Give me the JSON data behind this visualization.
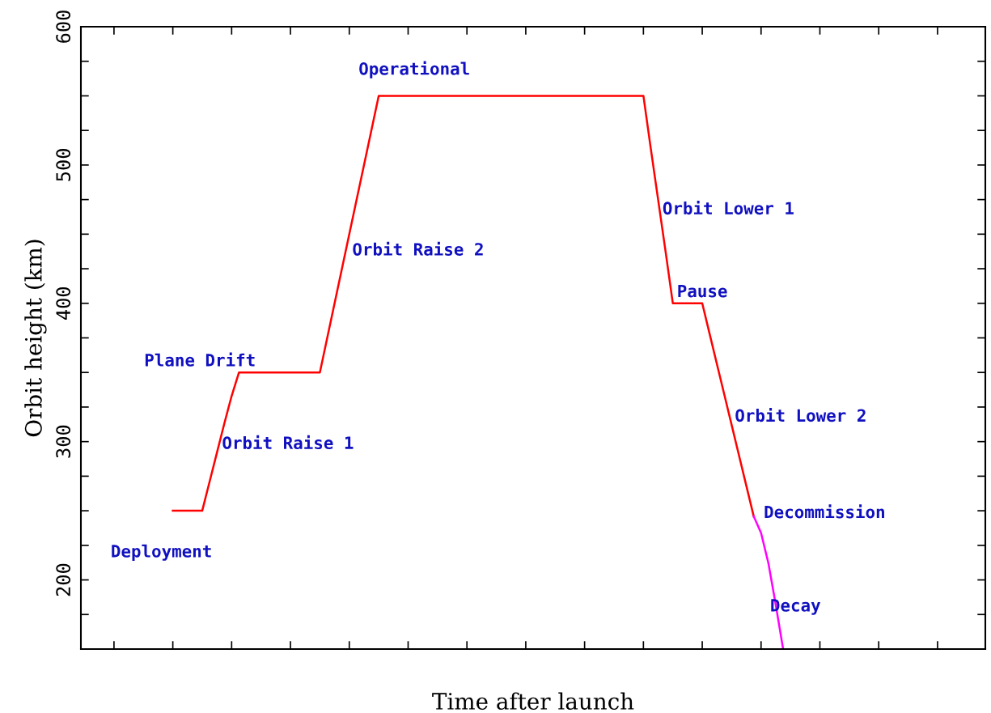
{
  "chart_data": {
    "type": "line",
    "xlabel": "Time after launch",
    "ylabel": "Orbit height (km)",
    "categories": [
      null,
      null,
      null,
      null,
      null,
      null,
      null,
      null,
      null,
      null,
      null,
      null,
      null,
      null,
      null,
      null,
      null,
      null,
      null,
      null,
      null,
      null,
      null,
      null,
      null,
      null,
      null,
      null,
      null,
      null,
      null,
      null,
      null,
      null,
      null,
      null,
      null,
      null,
      null,
      null,
      null,
      null,
      null,
      null,
      null,
      null,
      null,
      null,
      null,
      null,
      null,
      null,
      null,
      null,
      null,
      null,
      null,
      null,
      null,
      null,
      null,
      null,
      null,
      null,
      null,
      null,
      null,
      null,
      null,
      null,
      null,
      null,
      null,
      null,
      null,
      null,
      null,
      null,
      null,
      null,
      null,
      null,
      null,
      null,
      null,
      null,
      null,
      null,
      null,
      null,
      null,
      null,
      null,
      null,
      null,
      null,
      null,
      null,
      null,
      null,
      null,
      null,
      null,
      null,
      null,
      null,
      null,
      null,
      null,
      null,
      null,
      null,
      null,
      null,
      null,
      null,
      null,
      null,
      null,
      null,
      null,
      null,
      null
    ],
    "ylim": [
      150,
      600
    ],
    "yticks": [
      {
        "value": 175,
        "label": null
      },
      200,
      {
        "value": 225,
        "label": null
      },
      {
        "value": 250,
        "label": null
      },
      {
        "value": 275,
        "label": null
      },
      300,
      {
        "value": 325,
        "label": null
      },
      {
        "value": 350,
        "label": null
      },
      {
        "value": 375,
        "label": null
      },
      400,
      {
        "value": 425,
        "label": null
      },
      {
        "value": 450,
        "label": null
      },
      {
        "value": 475,
        "label": null
      },
      500,
      {
        "value": 525,
        "label": null
      },
      {
        "value": 550,
        "label": null
      },
      {
        "value": 575,
        "label": null
      },
      600
    ],
    "tick_labels": "y",
    "grid": false,
    "marker": "none",
    "line_style": "solid",
    "series": [
      {
        "color": "#ff0000",
        "values": [
          null,
          null,
          null,
          null,
          null,
          null,
          null,
          null,
          null,
          null,
          null,
          null,
          250,
          250,
          250,
          250,
          250,
          271,
          292,
          313,
          333,
          350,
          350,
          350,
          350,
          350,
          350,
          350,
          350,
          350,
          350,
          350,
          350,
          375,
          400,
          425,
          450,
          475,
          500,
          525,
          550,
          550,
          550,
          550,
          550,
          550,
          550,
          550,
          550,
          550,
          550,
          550,
          550,
          550,
          550,
          550,
          550,
          550,
          550,
          550,
          550,
          550,
          550,
          550,
          550,
          550,
          550,
          550,
          550,
          550,
          550,
          550,
          550,
          550,
          550,
          550,
          550,
          512,
          475,
          438,
          400,
          400,
          400,
          400,
          400,
          378,
          356,
          334,
          312,
          290,
          268,
          246,
          null,
          null,
          null,
          null,
          null,
          null,
          null,
          null,
          null,
          null,
          null,
          null,
          null,
          null,
          null,
          null,
          null,
          null,
          null,
          null,
          null,
          null,
          null,
          null,
          null,
          null,
          null,
          null,
          null,
          null,
          null
        ]
      },
      {
        "color": "#ff00ff",
        "values": [
          null,
          null,
          null,
          null,
          null,
          null,
          null,
          null,
          null,
          null,
          null,
          null,
          null,
          null,
          null,
          null,
          null,
          null,
          null,
          null,
          null,
          null,
          null,
          null,
          null,
          null,
          null,
          null,
          null,
          null,
          null,
          null,
          null,
          null,
          null,
          null,
          null,
          null,
          null,
          null,
          null,
          null,
          null,
          null,
          null,
          null,
          null,
          null,
          null,
          null,
          null,
          null,
          null,
          null,
          null,
          null,
          null,
          null,
          null,
          null,
          null,
          null,
          null,
          null,
          null,
          null,
          null,
          null,
          null,
          null,
          null,
          null,
          null,
          null,
          null,
          null,
          null,
          null,
          null,
          null,
          null,
          null,
          null,
          null,
          null,
          null,
          null,
          null,
          null,
          null,
          null,
          246,
          234,
          212,
          182,
          150,
          null,
          null,
          null,
          null,
          null,
          null,
          null,
          null,
          null,
          null,
          null,
          null,
          null,
          null,
          null,
          null,
          null,
          null,
          null,
          null,
          null,
          null,
          null,
          null,
          null,
          null,
          null
        ]
      }
    ],
    "annotations": [
      "Deployment",
      "Orbit Raise 1",
      "Plane Drift",
      "Orbit Raise 2",
      "Operational",
      "Orbit Lower 1",
      "Pause",
      "Orbit Lower 2",
      "Decommission",
      "Decay"
    ]
  }
}
